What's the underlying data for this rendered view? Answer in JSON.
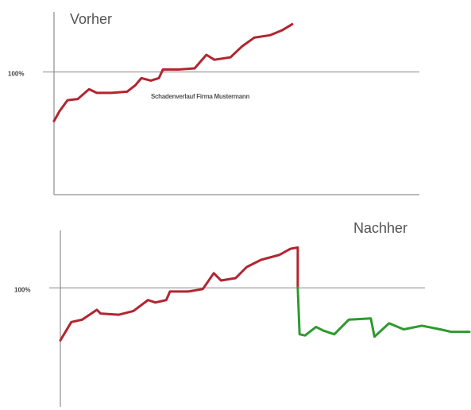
{
  "chart_data": [
    {
      "type": "line",
      "title": "Vorher",
      "annotation": "Schadenverlauf Firma Mustermann",
      "xlim": [
        0,
        100
      ],
      "ylim": [
        0,
        149
      ],
      "yticks": [
        {
          "value": 100,
          "label": "100%"
        }
      ],
      "grid": true,
      "series": [
        {
          "color": "#b22530",
          "x": [
            0,
            1.5,
            3.7,
            6.5,
            9.6,
            11.7,
            15.7,
            20,
            22.2,
            23.9,
            26.5,
            28.7,
            29.8,
            34.1,
            38.5,
            41.7,
            43.9,
            48.3,
            51.5,
            54.8,
            59.1,
            62.4,
            65.2
          ],
          "values": [
            60,
            68,
            77,
            78,
            86,
            83,
            83,
            84,
            89,
            95,
            93,
            95,
            102,
            102,
            103,
            114,
            110,
            112,
            121,
            128,
            130,
            134,
            139
          ]
        }
      ]
    },
    {
      "type": "line",
      "title": "Nachher",
      "xlim": [
        0,
        112
      ],
      "ylim": [
        0,
        147
      ],
      "yticks": [
        {
          "value": 100,
          "label": "100%"
        }
      ],
      "grid": true,
      "series": [
        {
          "color": "#b22530",
          "x": [
            0,
            1,
            3,
            6,
            10,
            11,
            16,
            20,
            24,
            26,
            29,
            30,
            35,
            39,
            42,
            44,
            48,
            51,
            55,
            60,
            63,
            65,
            65
          ],
          "values": [
            57,
            62,
            72,
            74,
            82,
            79,
            78,
            81,
            90,
            88,
            90,
            97,
            97,
            99,
            112,
            106,
            108,
            117,
            123,
            127,
            132,
            133,
            100
          ]
        },
        {
          "color": "#2e9a2e",
          "x": [
            65,
            65.5,
            67,
            70,
            72,
            75,
            79,
            85,
            86,
            90,
            94,
            99,
            104,
            107,
            112
          ],
          "values": [
            100,
            62,
            61,
            68,
            65,
            62,
            74,
            75,
            60,
            71,
            66,
            69,
            66,
            64,
            64
          ]
        }
      ]
    }
  ]
}
